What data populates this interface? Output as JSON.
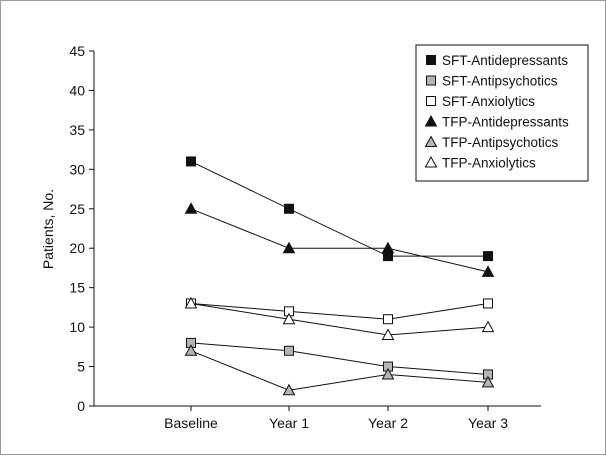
{
  "chart_data": {
    "type": "line",
    "title": "",
    "xlabel": "",
    "ylabel": "Patients, No.",
    "ylim": [
      0,
      45
    ],
    "yticks": [
      0,
      5,
      10,
      15,
      20,
      25,
      30,
      35,
      40,
      45
    ],
    "categories": [
      "Baseline",
      "Year 1",
      "Year 2",
      "Year 3"
    ],
    "grid": false,
    "legend_position": "top-right",
    "series": [
      {
        "name": "SFT-Antidepressants",
        "marker": "square",
        "fill": "#111111",
        "values": [
          31,
          25,
          19,
          19
        ]
      },
      {
        "name": "SFT-Antipsychotics",
        "marker": "square",
        "fill": "#b5b5b5",
        "values": [
          8,
          7,
          5,
          4
        ]
      },
      {
        "name": "SFT-Anxiolytics",
        "marker": "square",
        "fill": "#ffffff",
        "values": [
          13,
          12,
          11,
          13
        ]
      },
      {
        "name": "TFP-Antidepressants",
        "marker": "triangle",
        "fill": "#111111",
        "values": [
          25,
          20,
          20,
          17
        ]
      },
      {
        "name": "TFP-Antipsychotics",
        "marker": "triangle",
        "fill": "#b5b5b5",
        "values": [
          7,
          2,
          4,
          3
        ]
      },
      {
        "name": "TFP-Anxiolytics",
        "marker": "triangle",
        "fill": "#ffffff",
        "values": [
          13,
          11,
          9,
          10
        ]
      }
    ]
  }
}
